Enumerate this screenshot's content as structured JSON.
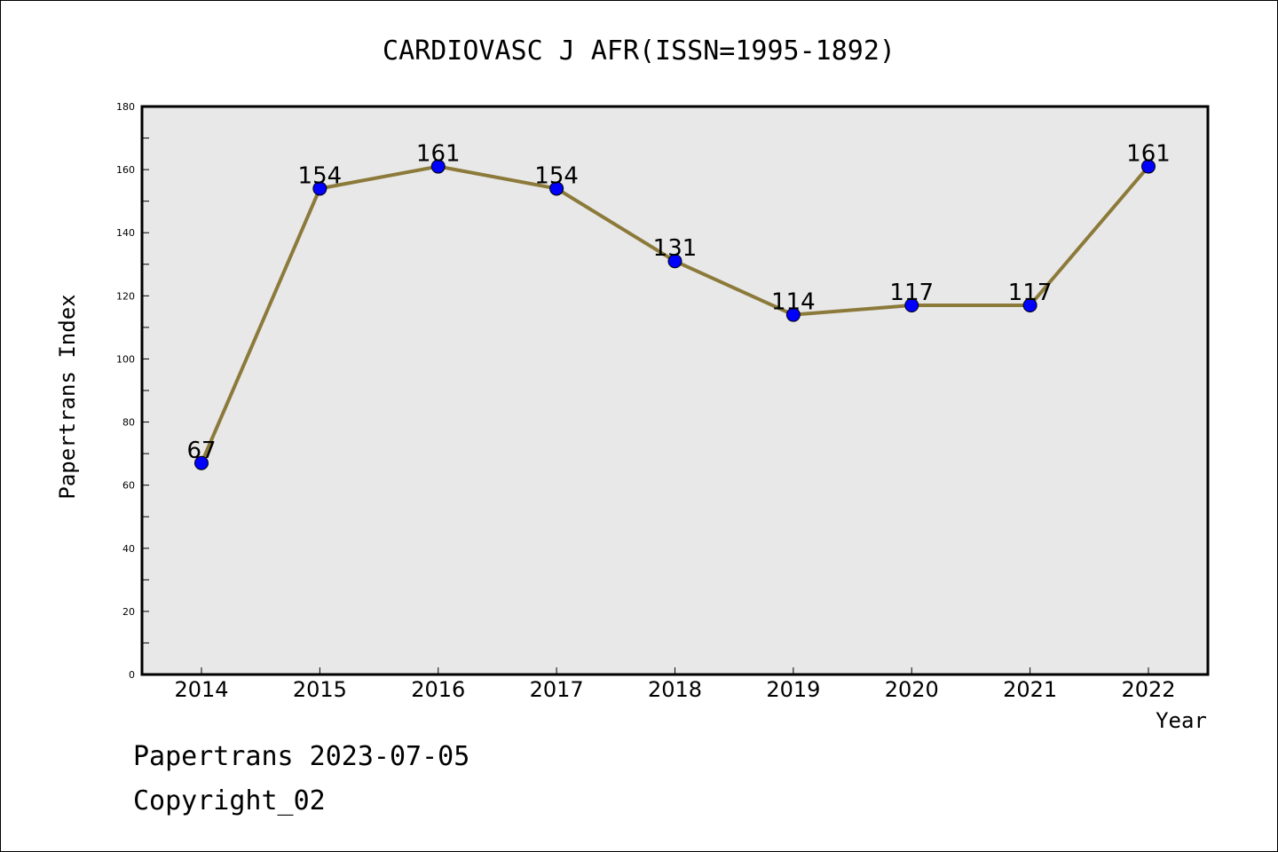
{
  "chart_data": {
    "type": "line",
    "title": "CARDIOVASC J AFR(ISSN=1995-1892)",
    "xlabel": "Year",
    "ylabel": "Papertrans Index",
    "categories": [
      "2014",
      "2015",
      "2016",
      "2017",
      "2018",
      "2019",
      "2020",
      "2021",
      "2022"
    ],
    "series": [
      {
        "values": [
          67,
          154,
          161,
          154,
          131,
          114,
          117,
          117,
          161
        ]
      }
    ],
    "ylim": [
      0,
      180
    ],
    "yticks": [
      0,
      20,
      40,
      60,
      80,
      100,
      120,
      140,
      160,
      180
    ],
    "grid": false,
    "colors": {
      "line": "#8c7a3a",
      "marker": "#0000ff",
      "plot_bg": "#e8e8e8"
    }
  },
  "footer": {
    "line1": "Papertrans 2023-07-05",
    "line2": "Copyright_02"
  }
}
